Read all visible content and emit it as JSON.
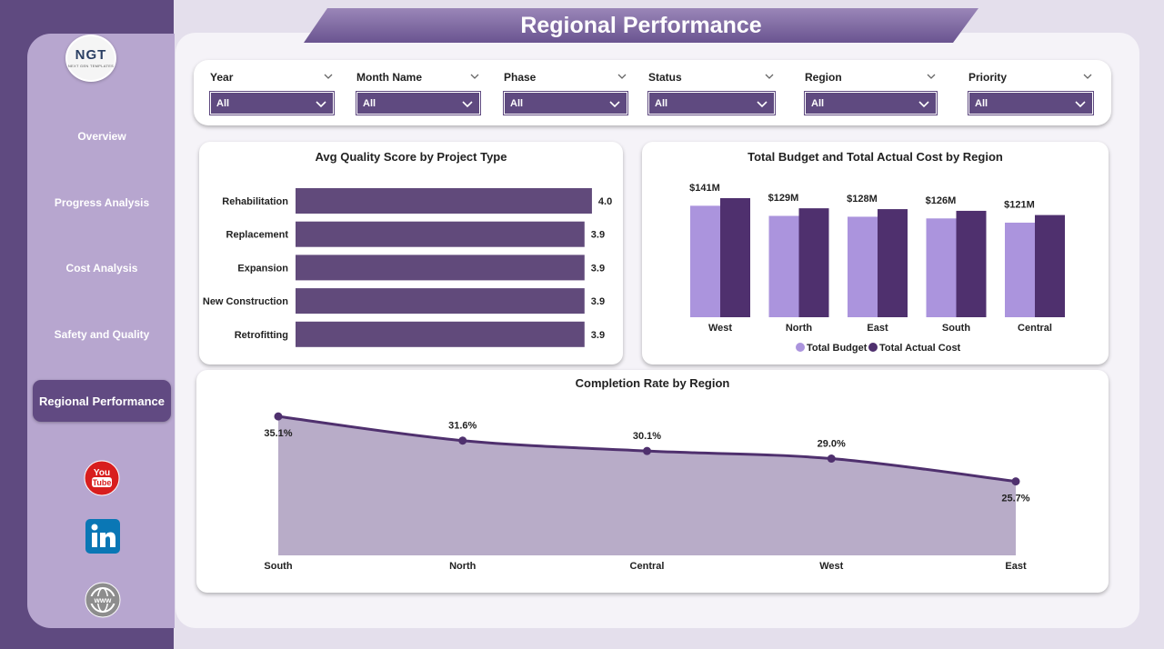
{
  "page": {
    "title": "Regional Performance"
  },
  "logo": {
    "text": "NGT",
    "subtext": "NEXT GEN TEMPLATES"
  },
  "sidebar": {
    "items": [
      {
        "label": "Overview",
        "active": false
      },
      {
        "label": "Progress Analysis",
        "active": false
      },
      {
        "label": "Cost Analysis",
        "active": false
      },
      {
        "label": "Safety and Quality",
        "active": false
      },
      {
        "label": "Regional Performance",
        "active": true
      }
    ],
    "social": [
      "youtube-icon",
      "linkedin-icon",
      "website-icon"
    ]
  },
  "filters": [
    {
      "label": "Year",
      "value": "All"
    },
    {
      "label": "Month Name",
      "value": "All"
    },
    {
      "label": "Phase",
      "value": "All"
    },
    {
      "label": "Status",
      "value": "All"
    },
    {
      "label": "Region",
      "value": "All"
    },
    {
      "label": "Priority",
      "value": "All"
    }
  ],
  "colors": {
    "accent": "#5f4a80",
    "budget": "#ab94dd",
    "actual": "#4f306e",
    "area": "#b8acc8",
    "bar": "#614a7b"
  },
  "chart_data": [
    {
      "type": "bar",
      "orientation": "horizontal",
      "title": "Avg Quality Score by Project Type",
      "categories": [
        "Rehabilitation",
        "Replacement",
        "Expansion",
        "New Construction",
        "Retrofitting"
      ],
      "values": [
        4.0,
        3.9,
        3.9,
        3.9,
        3.9
      ],
      "data_labels": [
        "4.0",
        "3.9",
        "3.9",
        "3.9",
        "3.9"
      ]
    },
    {
      "type": "bar",
      "title": "Total Budget and Total Actual Cost by Region",
      "categories": [
        "West",
        "North",
        "East",
        "South",
        "Central"
      ],
      "series": [
        {
          "name": "Total Budget",
          "values": [
            132,
            120,
            119,
            117,
            112
          ]
        },
        {
          "name": "Total Actual Cost",
          "values": [
            141,
            129,
            128,
            126,
            121
          ]
        }
      ],
      "data_labels": [
        "$141M",
        "$129M",
        "$128M",
        "$126M",
        "$121M"
      ],
      "legend": "bottom"
    },
    {
      "type": "area",
      "title": "Completion Rate by Region",
      "categories": [
        "South",
        "North",
        "Central",
        "West",
        "East"
      ],
      "values": [
        35.1,
        31.6,
        30.1,
        29.0,
        25.7
      ],
      "data_labels": [
        "35.1%",
        "31.6%",
        "30.1%",
        "29.0%",
        "25.7%"
      ]
    }
  ]
}
